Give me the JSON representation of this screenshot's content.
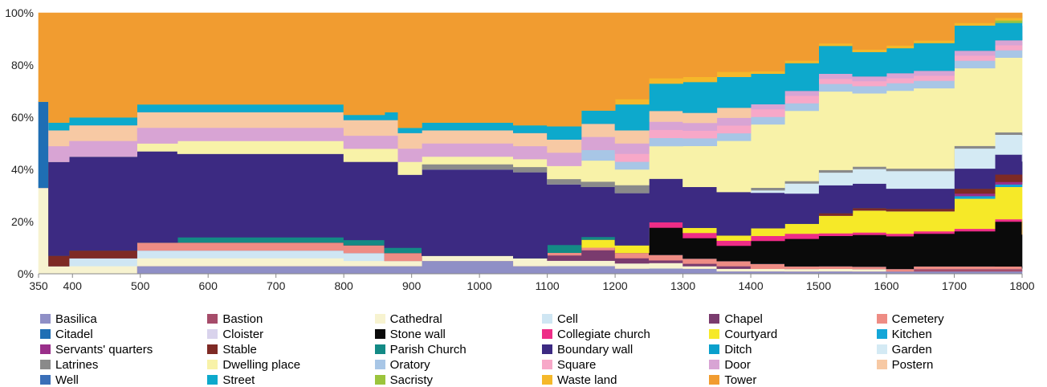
{
  "chart_data": {
    "type": "area",
    "stacked_percent": true,
    "x_ticks": [
      350,
      400,
      500,
      600,
      700,
      800,
      900,
      1000,
      1100,
      1200,
      1300,
      1400,
      1500,
      1600,
      1700,
      1800
    ],
    "y_ticks": [
      "0%",
      "20%",
      "40%",
      "60%",
      "80%",
      "100%"
    ],
    "xlim": [
      350,
      1800
    ],
    "ylim": [
      0,
      100
    ],
    "x": [
      350,
      365,
      395,
      495,
      555,
      800,
      860,
      880,
      915,
      1050,
      1100,
      1150,
      1200,
      1250,
      1300,
      1350,
      1400,
      1450,
      1500,
      1550,
      1600,
      1640,
      1700,
      1760,
      1800
    ],
    "series": [
      {
        "name": "Basilica",
        "color": "#8f8fc6",
        "values": [
          0,
          0,
          0,
          3,
          3,
          3,
          3,
          3,
          5,
          3,
          3,
          3,
          2,
          2,
          2,
          1,
          1,
          1,
          1,
          1,
          1,
          1,
          1,
          1,
          1
        ]
      },
      {
        "name": "Bastion",
        "color": "#a64c6a",
        "values": [
          0,
          0,
          0,
          0,
          0,
          0,
          0,
          0,
          0,
          0,
          0,
          0,
          0,
          0,
          0,
          0,
          0,
          0,
          0,
          0,
          0,
          1,
          1,
          1,
          1
        ]
      },
      {
        "name": "Cathedral",
        "color": "#f7f3d0",
        "values": [
          33,
          3,
          3,
          3,
          3,
          2,
          2,
          2,
          2,
          3,
          2,
          2,
          2,
          2,
          1,
          1,
          1,
          1,
          1,
          1,
          0,
          0,
          0,
          0,
          0
        ]
      },
      {
        "name": "Cell",
        "color": "#cfe6f3",
        "values": [
          0,
          0,
          3,
          3,
          3,
          3,
          0,
          0,
          0,
          0,
          0,
          0,
          0,
          0,
          0,
          0,
          0,
          0,
          0,
          0,
          0,
          0,
          0,
          0,
          0
        ]
      },
      {
        "name": "Chapel",
        "color": "#7a3b6e",
        "values": [
          0,
          0,
          0,
          0,
          0,
          0,
          0,
          0,
          0,
          0,
          2,
          4,
          2,
          1,
          1,
          1,
          0,
          0,
          0,
          0,
          0,
          0,
          0,
          0,
          0
        ]
      },
      {
        "name": "Cemetery",
        "color": "#ee8c84",
        "values": [
          0,
          0,
          0,
          3,
          3,
          3,
          3,
          3,
          0,
          0,
          1,
          1,
          2,
          2,
          2,
          2,
          2,
          1,
          1,
          1,
          1,
          1,
          1,
          1,
          0
        ]
      },
      {
        "name": "Citadel",
        "color": "#1f6eb4",
        "values": [
          33,
          0,
          0,
          0,
          0,
          0,
          0,
          0,
          0,
          0,
          0,
          0,
          0,
          0,
          0,
          0,
          0,
          0,
          0,
          0,
          0,
          0,
          0,
          0,
          0
        ]
      },
      {
        "name": "Cloister",
        "color": "#d9d3ec",
        "values": [
          0,
          0,
          0,
          0,
          0,
          0,
          0,
          0,
          0,
          0,
          0,
          0,
          0,
          0,
          0,
          0,
          0,
          0,
          0,
          0,
          0,
          0,
          0,
          0,
          0
        ]
      },
      {
        "name": "Stone wall",
        "color": "#0a0a0a",
        "values": [
          0,
          0,
          0,
          0,
          0,
          0,
          0,
          0,
          0,
          0,
          0,
          0,
          0,
          10,
          8,
          6,
          9,
          11,
          12,
          13,
          13,
          13,
          14,
          18,
          13
        ]
      },
      {
        "name": "Collegiate church",
        "color": "#ee2d87",
        "values": [
          0,
          0,
          0,
          0,
          0,
          0,
          0,
          0,
          0,
          0,
          0,
          0,
          0,
          2,
          2,
          2,
          2,
          2,
          1,
          1,
          1,
          1,
          1,
          1,
          0
        ]
      },
      {
        "name": "Courtyard",
        "color": "#f6e928",
        "values": [
          0,
          0,
          0,
          0,
          0,
          0,
          0,
          0,
          0,
          0,
          0,
          3,
          3,
          0,
          2,
          2,
          3,
          4,
          7,
          9,
          9,
          8,
          12,
          13,
          22
        ]
      },
      {
        "name": "Kitchen",
        "color": "#13a6d8",
        "values": [
          0,
          0,
          0,
          0,
          0,
          0,
          0,
          0,
          0,
          0,
          0,
          0,
          0,
          0,
          0,
          0,
          0,
          0,
          0,
          0,
          0,
          0,
          1,
          1,
          1
        ]
      },
      {
        "name": "Servants' quarters",
        "color": "#9a2f8a",
        "values": [
          0,
          0,
          0,
          0,
          0,
          0,
          0,
          0,
          0,
          0,
          0,
          0,
          0,
          0,
          0,
          0,
          0,
          0,
          0,
          0,
          0,
          0,
          1,
          1,
          0
        ]
      },
      {
        "name": "Stable",
        "color": "#7e2a25",
        "values": [
          0,
          4,
          3,
          0,
          0,
          0,
          0,
          0,
          0,
          0,
          0,
          0,
          0,
          0,
          0,
          0,
          0,
          0,
          1,
          1,
          1,
          1,
          2,
          3,
          5
        ]
      },
      {
        "name": "Parish Church",
        "color": "#138a85",
        "values": [
          0,
          0,
          0,
          0,
          2,
          2,
          2,
          2,
          0,
          0,
          3,
          1,
          0,
          0,
          0,
          0,
          0,
          0,
          0,
          0,
          0,
          0,
          0,
          0,
          0
        ]
      },
      {
        "name": "Boundary wall",
        "color": "#3c2a82",
        "values": [
          0,
          36,
          36,
          35,
          32,
          30,
          33,
          28,
          33,
          33,
          23,
          19,
          20,
          16,
          16,
          17,
          14,
          12,
          11,
          10,
          8,
          8,
          8,
          8,
          0
        ]
      },
      {
        "name": "Ditch",
        "color": "#0aa0cc",
        "values": [
          0,
          0,
          0,
          0,
          0,
          0,
          0,
          0,
          0,
          0,
          0,
          0,
          0,
          0,
          0,
          0,
          0,
          0,
          0,
          0,
          0,
          0,
          0,
          0,
          0
        ]
      },
      {
        "name": "Garden",
        "color": "#d4eaf4",
        "values": [
          0,
          0,
          0,
          0,
          0,
          0,
          0,
          0,
          0,
          0,
          0,
          0,
          0,
          0,
          0,
          0,
          1,
          4,
          5,
          6,
          7,
          7,
          8,
          8,
          10
        ]
      },
      {
        "name": "Latrines",
        "color": "#8a8a8a",
        "values": [
          0,
          0,
          0,
          0,
          0,
          0,
          0,
          0,
          2,
          2,
          2,
          2,
          3,
          0,
          0,
          0,
          1,
          1,
          1,
          1,
          1,
          1,
          1,
          1,
          1
        ]
      },
      {
        "name": "Dwelling place",
        "color": "#f8f2a8",
        "values": [
          0,
          0,
          0,
          3,
          5,
          5,
          5,
          5,
          3,
          3,
          5,
          8,
          6,
          12,
          16,
          20,
          25,
          28,
          31,
          30,
          31,
          32,
          31,
          30,
          33
        ]
      },
      {
        "name": "Oratory",
        "color": "#a8c6e6",
        "values": [
          0,
          0,
          0,
          0,
          0,
          0,
          0,
          0,
          0,
          0,
          0,
          4,
          3,
          3,
          3,
          3,
          3,
          3,
          3,
          3,
          3,
          3,
          3,
          3,
          2
        ]
      },
      {
        "name": "Square",
        "color": "#f7a8c8",
        "values": [
          0,
          0,
          0,
          0,
          0,
          0,
          0,
          0,
          0,
          0,
          0,
          0,
          3,
          3,
          3,
          3,
          3,
          3,
          2,
          2,
          2,
          2,
          2,
          2,
          0
        ]
      },
      {
        "name": "Door",
        "color": "#d8a4d4",
        "values": [
          0,
          6,
          6,
          6,
          5,
          5,
          5,
          5,
          5,
          5,
          5,
          5,
          4,
          3,
          3,
          3,
          2,
          2,
          2,
          2,
          2,
          2,
          2,
          2,
          2
        ]
      },
      {
        "name": "Postern",
        "color": "#f7c9a4",
        "values": [
          0,
          6,
          6,
          6,
          6,
          6,
          6,
          6,
          5,
          5,
          5,
          5,
          5,
          4,
          4,
          4,
          0,
          0,
          0,
          0,
          0,
          0,
          0,
          0,
          0
        ]
      },
      {
        "name": "Well",
        "color": "#3a6fb8",
        "values": [
          0,
          0,
          0,
          0,
          0,
          0,
          0,
          0,
          0,
          0,
          0,
          0,
          0,
          0,
          0,
          0,
          0,
          0,
          0,
          0,
          0,
          0,
          0,
          0,
          4
        ]
      },
      {
        "name": "Street",
        "color": "#0da9cc",
        "values": [
          0,
          3,
          3,
          3,
          3,
          2,
          3,
          2,
          3,
          3,
          5,
          5,
          10,
          10,
          12,
          12,
          12,
          11,
          11,
          10,
          10,
          11,
          10,
          7,
          4
        ]
      },
      {
        "name": "Sacristy",
        "color": "#9bc43c",
        "values": [
          0,
          0,
          0,
          0,
          0,
          0,
          0,
          0,
          0,
          0,
          0,
          0,
          0,
          0,
          0,
          0,
          0,
          0,
          0,
          0,
          0,
          0,
          0,
          1,
          1
        ]
      },
      {
        "name": "Waste land",
        "color": "#f5b82a",
        "values": [
          0,
          0,
          0,
          0,
          0,
          0,
          0,
          0,
          0,
          0,
          0,
          0,
          2,
          2,
          2,
          2,
          1,
          1,
          1,
          1,
          1,
          1,
          1,
          1,
          0
        ]
      },
      {
        "name": "Tower",
        "color": "#f19c30",
        "values": [
          34,
          42,
          40,
          35,
          35,
          39,
          38,
          44,
          42,
          43,
          43,
          37,
          33,
          24,
          25,
          23,
          23,
          19,
          12,
          15,
          13,
          11,
          4,
          2,
          0
        ]
      }
    ]
  }
}
